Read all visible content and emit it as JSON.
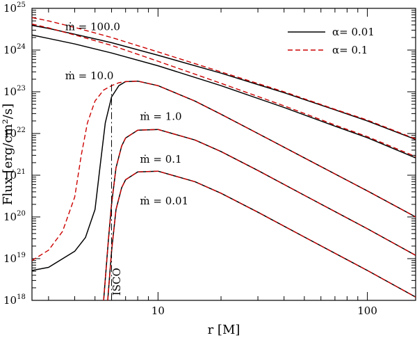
{
  "chart_data": {
    "type": "line",
    "title": "",
    "xlabel": "r [M]",
    "ylabel": "Flux [erg/cm²/s]",
    "xscale": "log",
    "yscale": "log",
    "xlim": [
      2.5,
      170
    ],
    "ylim": [
      1e+18,
      1e+25
    ],
    "x_ticks": [
      {
        "value": 10,
        "label": "10"
      },
      {
        "value": 100,
        "label": "100"
      }
    ],
    "y_ticks": [
      {
        "value": 1e+18,
        "mantissa": "10",
        "exponent": "18"
      },
      {
        "value": 1e+19,
        "mantissa": "10",
        "exponent": "19"
      },
      {
        "value": 1e+20,
        "mantissa": "10",
        "exponent": "20"
      },
      {
        "value": 1e+21,
        "mantissa": "10",
        "exponent": "21"
      },
      {
        "value": 1e+22,
        "mantissa": "10",
        "exponent": "22"
      },
      {
        "value": 1e+23,
        "mantissa": "10",
        "exponent": "23"
      },
      {
        "value": 1e+24,
        "mantissa": "10",
        "exponent": "24"
      },
      {
        "value": 1e+25,
        "mantissa": "10",
        "exponent": "25"
      }
    ],
    "legend": {
      "placement": "top-right",
      "entries": [
        {
          "label": "α= 0.01",
          "color": "#000000",
          "dash": "solid"
        },
        {
          "label": "α= 0.1",
          "color": "#cc0000",
          "dash": "dashed"
        }
      ]
    },
    "annotations": [
      {
        "text": "ṁ = 100.0",
        "x": 3.6,
        "y": 3e+24
      },
      {
        "text": "ṁ = 10.0",
        "x": 3.6,
        "y": 2e+23
      },
      {
        "text": "ṁ = 1.0",
        "x": 8.2,
        "y": 2.1e+22
      },
      {
        "text": "ṁ = 0.1",
        "x": 8.2,
        "y": 2e+21
      },
      {
        "text": "ṁ = 0.01",
        "x": 8.2,
        "y": 2e+20
      },
      {
        "text": "ISCO",
        "x": 6.6,
        "y": 1.3e+18,
        "rotated": true
      }
    ],
    "isco": {
      "x": 6.0,
      "label": "ISCO"
    },
    "series": [
      {
        "name": "ṁ = 100.0, α = 0.01",
        "color": "#000000",
        "dash": "solid",
        "x": [
          2.5,
          3,
          4,
          6,
          10,
          20,
          40,
          70,
          100,
          170
        ],
        "y": [
          3.9e+24,
          3.3e+24,
          2.4e+24,
          1.5e+24,
          7.5e+23,
          2.8e+23,
          9.5e+22,
          3.7e+22,
          2e+22,
          7.2e+21
        ]
      },
      {
        "name": "ṁ = 100.0, α = 0.1",
        "color": "#cc0000",
        "dash": "dashed",
        "x": [
          2.5,
          3,
          4,
          6,
          10,
          20,
          40,
          70,
          100,
          170
        ],
        "y": [
          6e+24,
          5e+24,
          3.5e+24,
          2e+24,
          9e+23,
          3e+23,
          1e+23,
          3.8e+22,
          2.1e+22,
          7.4e+21
        ]
      },
      {
        "name": "ṁ = 10.0, α = 0.01",
        "color": "#000000",
        "dash": "solid",
        "x": [
          2.5,
          3,
          4,
          6,
          10,
          20,
          40,
          70,
          100,
          170
        ],
        "y": [
          2.3e+24,
          1.9e+24,
          1.4e+24,
          8.5e+23,
          4.2e+23,
          1.4e+23,
          4.2e+22,
          1.5e+22,
          7.9e+21,
          2.6e+21
        ]
      },
      {
        "name": "ṁ = 10.0, α = 0.1",
        "color": "#cc0000",
        "dash": "dashed",
        "x": [
          2.5,
          3,
          4,
          6,
          10,
          20,
          40,
          70,
          100,
          170
        ],
        "y": [
          4.2e+24,
          3.4e+24,
          2.3e+24,
          1.3e+24,
          5.4e+23,
          1.6e+23,
          4.6e+22,
          1.6e+22,
          8.4e+21,
          2.8e+21
        ]
      },
      {
        "name": "ṁ = 1.0, α = 0.01",
        "color": "#000000",
        "dash": "solid",
        "x": [
          2.5,
          3,
          4,
          4.5,
          5,
          5.3,
          5.6,
          6,
          6.5,
          7,
          8,
          10,
          15,
          20,
          30,
          50,
          100,
          170
        ],
        "y": [
          5.2e+18,
          6.2e+18,
          1.5e+19,
          3.2e+19,
          1.5e+20,
          1.8e+21,
          1.8e+22,
          7.5e+22,
          1.4e+23,
          1.75e+23,
          1.8e+23,
          1.4e+23,
          6e+22,
          2.9e+22,
          1e+22,
          2.6e+21,
          4.2e+20,
          1e+20
        ]
      },
      {
        "name": "ṁ = 1.0, α = 0.1",
        "color": "#cc0000",
        "dash": "dashed",
        "x": [
          2.5,
          3,
          3.5,
          4,
          4.3,
          4.6,
          5,
          5.5,
          6,
          6.5,
          7,
          8,
          10,
          15,
          20,
          30,
          50,
          100,
          170
        ],
        "y": [
          9e+18,
          1.6e+19,
          4.5e+19,
          3e+20,
          3e+21,
          1.8e+22,
          6e+22,
          1.1e+23,
          1.4e+23,
          1.65e+23,
          1.75e+23,
          1.8e+23,
          1.4e+23,
          6e+22,
          2.9e+22,
          1e+22,
          2.6e+21,
          4.2e+20,
          1e+20
        ]
      },
      {
        "name": "ṁ = 0.1, α = 0.01",
        "color": "#000000",
        "dash": "solid",
        "x": [
          5.5,
          5.8,
          6,
          6.3,
          6.7,
          7,
          8,
          10,
          15,
          20,
          30,
          50,
          100,
          170
        ],
        "y": [
          1e+18,
          3e+19,
          2e+20,
          1.5e+21,
          5e+21,
          7.8e+21,
          1.2e+22,
          1.25e+22,
          7e+21,
          3.7e+21,
          1.3e+21,
          3.3e+20,
          5.2e+19,
          1.2e+19
        ]
      },
      {
        "name": "ṁ = 0.1, α = 0.1",
        "color": "#cc0000",
        "dash": "dashed",
        "x": [
          5.5,
          5.8,
          6,
          6.3,
          6.7,
          7,
          8,
          10,
          15,
          20,
          30,
          50,
          100,
          170
        ],
        "y": [
          1e+18,
          3e+19,
          2e+20,
          1.5e+21,
          5e+21,
          7.8e+21,
          1.2e+22,
          1.25e+22,
          7e+21,
          3.7e+21,
          1.3e+21,
          3.3e+20,
          5.2e+19,
          1.2e+19
        ]
      },
      {
        "name": "ṁ = 0.01, α = 0.01",
        "color": "#000000",
        "dash": "solid",
        "x": [
          5.75,
          6,
          6.3,
          6.7,
          7,
          8,
          10,
          15,
          20,
          30,
          50,
          100,
          170
        ],
        "y": [
          1e+18,
          1.5e+19,
          1.5e+20,
          5e+20,
          7.8e+20,
          1.2e+21,
          1.25e+21,
          7e+20,
          3.7e+20,
          1.3e+20,
          3.3e+19,
          5.2e+18,
          1.2e+18
        ]
      },
      {
        "name": "ṁ = 0.01, α = 0.1",
        "color": "#cc0000",
        "dash": "dashed",
        "x": [
          5.75,
          6,
          6.3,
          6.7,
          7,
          8,
          10,
          15,
          20,
          30,
          50,
          100,
          170
        ],
        "y": [
          1e+18,
          1.5e+19,
          1.5e+20,
          5e+20,
          7.8e+20,
          1.2e+21,
          1.25e+21,
          7e+20,
          3.7e+20,
          1.3e+20,
          3.3e+19,
          5.2e+18,
          1.2e+18
        ]
      }
    ]
  }
}
